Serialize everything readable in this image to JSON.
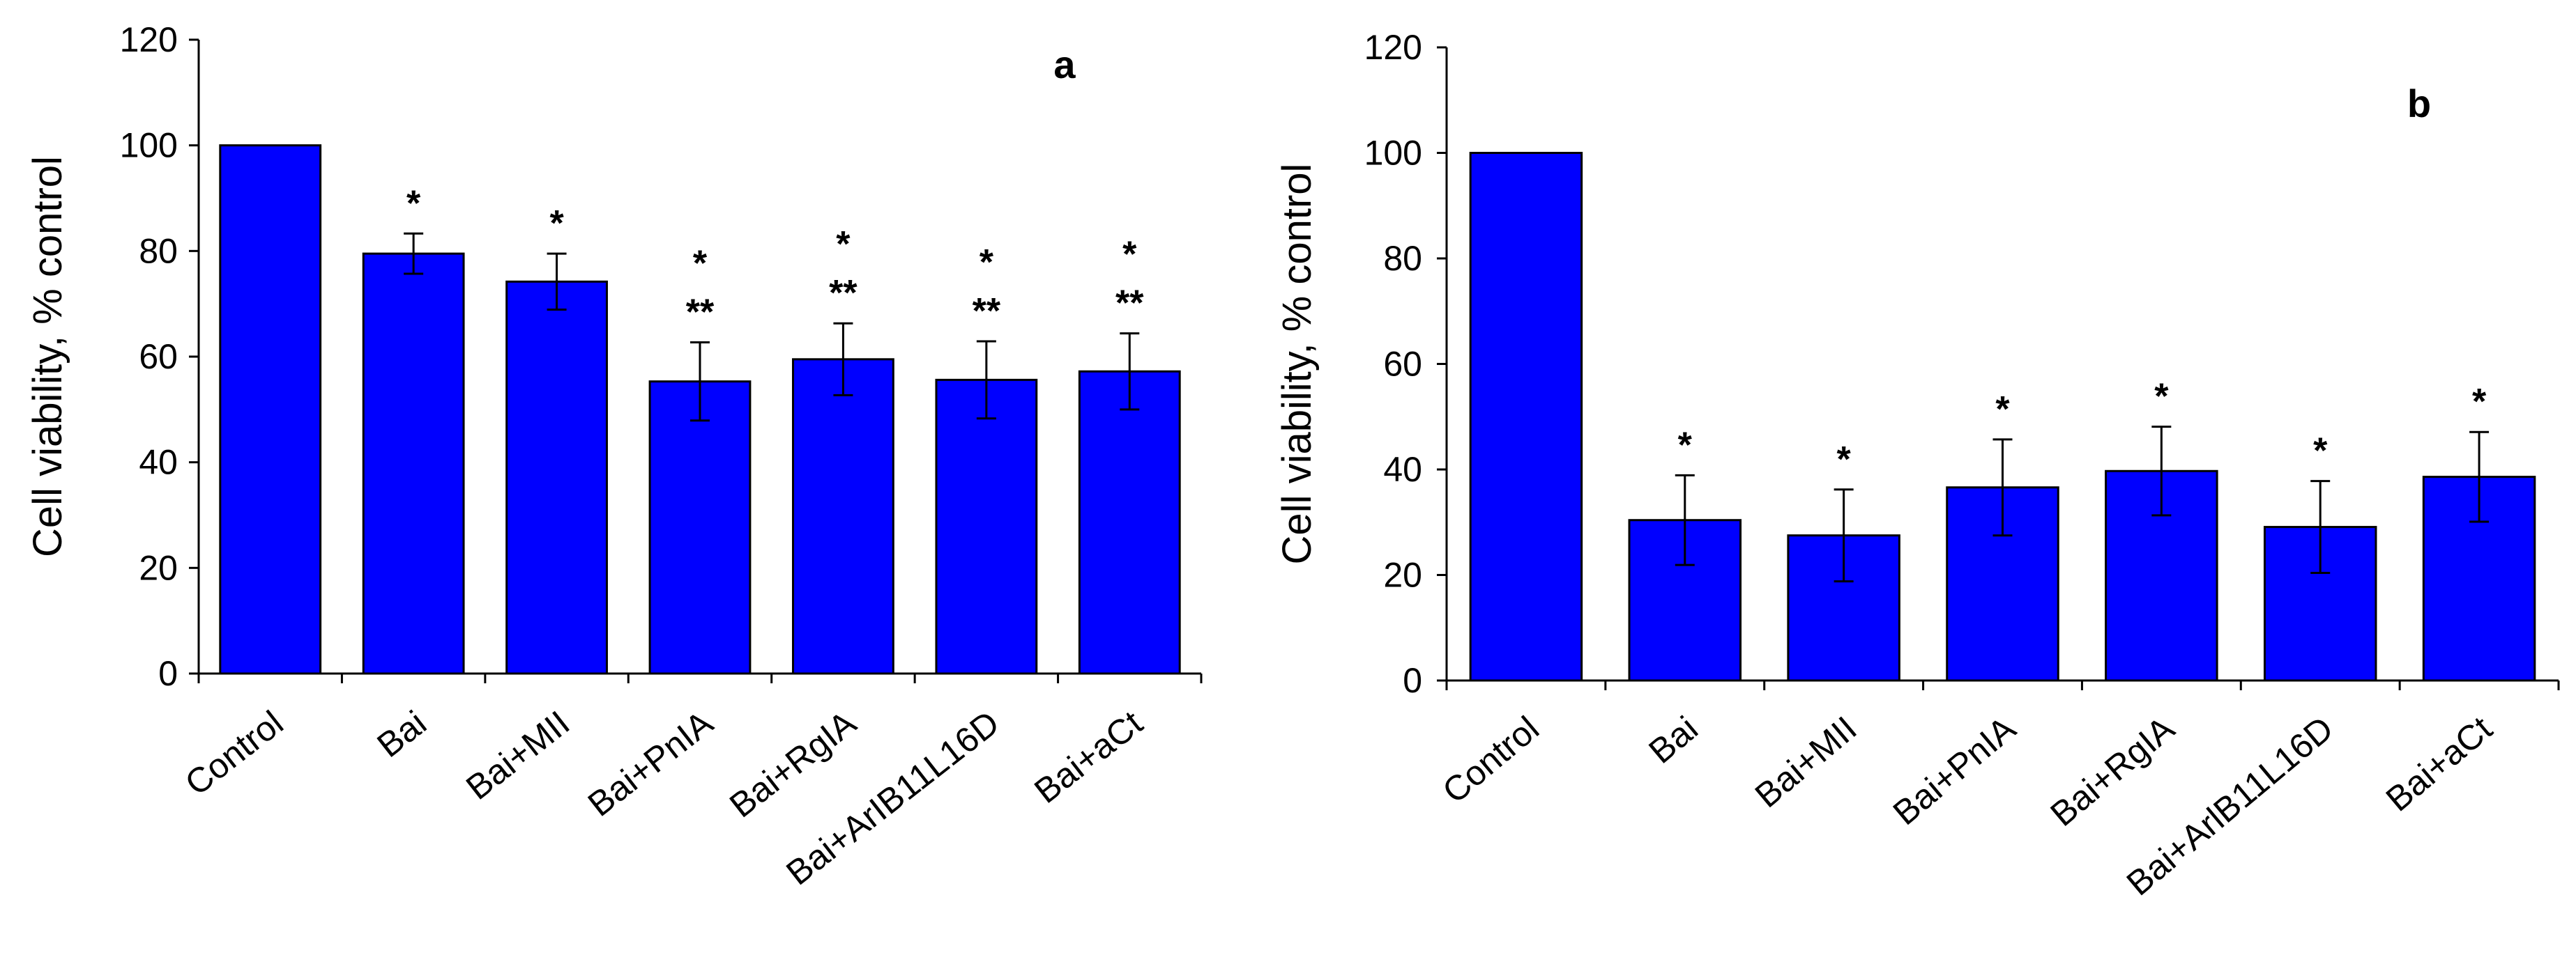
{
  "chart_data": [
    {
      "type": "bar",
      "panel_label": "a",
      "title": "",
      "xlabel": "",
      "ylabel": "Cell viability,  % control",
      "ylim": [
        0,
        120
      ],
      "yticks": [
        0,
        20,
        40,
        60,
        80,
        100,
        120
      ],
      "bar_color": "#0000ff",
      "categories": [
        "Control",
        "Bai",
        "Bai+MII",
        "Bai+PnIA",
        "Bai+RgIA",
        "Bai+ArIB11L16D",
        "Bai+aCt"
      ],
      "values": [
        100,
        79.5,
        74.2,
        55.3,
        59.5,
        55.6,
        57.2
      ],
      "errors": [
        0,
        3.8,
        5.3,
        7.4,
        6.8,
        7.3,
        7.2
      ],
      "annotations": [
        [],
        [
          "*"
        ],
        [
          "*"
        ],
        [
          "*",
          "**"
        ],
        [
          "*",
          "**"
        ],
        [
          "*",
          "**"
        ],
        [
          "*",
          "**"
        ]
      ]
    },
    {
      "type": "bar",
      "panel_label": "b",
      "title": "",
      "xlabel": "",
      "ylabel": "Cell viability,  % control",
      "ylim": [
        0,
        120
      ],
      "yticks": [
        0,
        20,
        40,
        60,
        80,
        100,
        120
      ],
      "bar_color": "#0000ff",
      "categories": [
        "Control",
        "Bai",
        "Bai+MII",
        "Bai+PnIA",
        "Bai+RgIA",
        "Bai+ArlB11L16D",
        "Bai+aCt"
      ],
      "values": [
        100,
        30.4,
        27.5,
        36.6,
        39.7,
        29.1,
        38.6
      ],
      "errors": [
        0,
        8.5,
        8.7,
        9.1,
        8.4,
        8.7,
        8.5
      ],
      "annotations": [
        [],
        [
          "*"
        ],
        [
          "*"
        ],
        [
          "*"
        ],
        [
          "*"
        ],
        [
          "*"
        ],
        [
          "*"
        ]
      ]
    }
  ]
}
